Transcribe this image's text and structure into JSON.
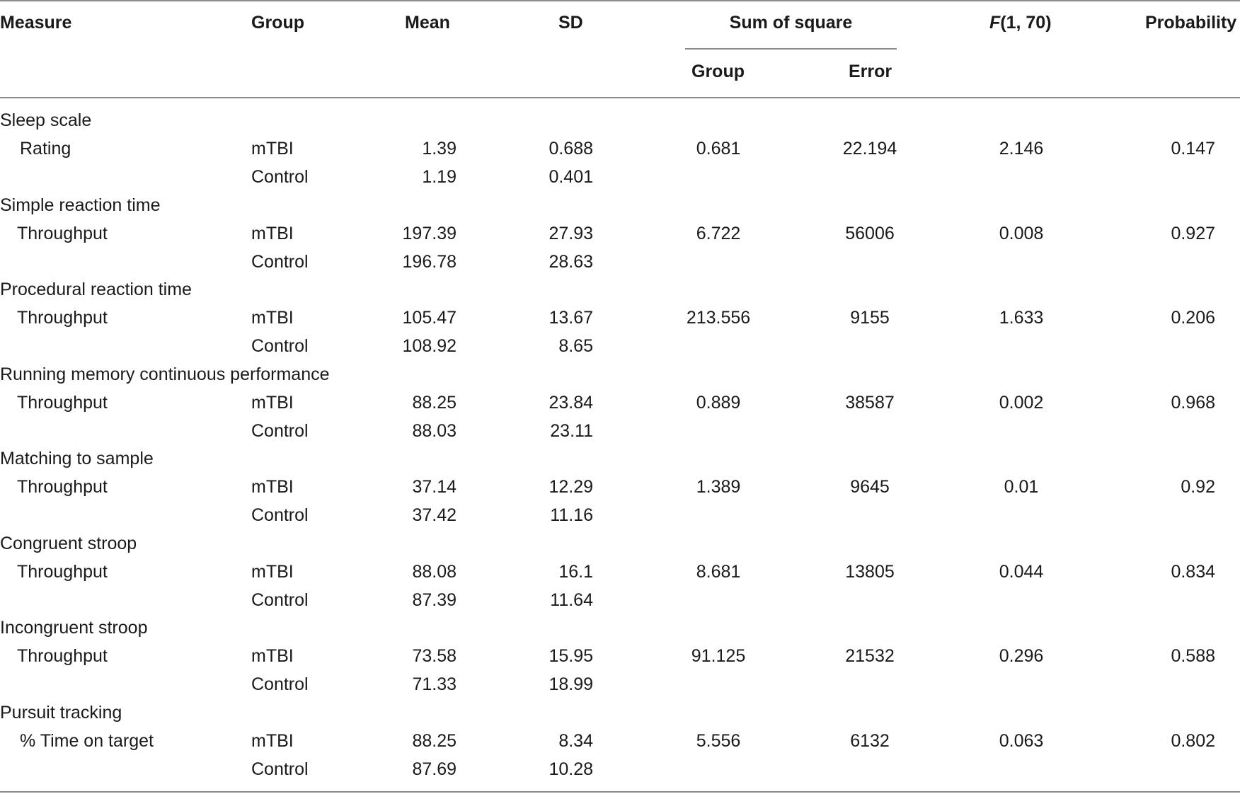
{
  "headers": {
    "measure": "Measure",
    "group": "Group",
    "mean": "Mean",
    "sd": "SD",
    "sum_of_square": "Sum of square",
    "ss_group": "Group",
    "ss_error": "Error",
    "f_italic": "F",
    "f_rest": "(1, 70)",
    "probability": "Probability"
  },
  "sections": [
    {
      "title": "Sleep scale",
      "metric": "Rating",
      "rows": [
        {
          "group": "mTBI",
          "mean": "1.39",
          "sd": "0.688",
          "ss_group": "0.681",
          "ss_error": "22.194",
          "f": "2.146",
          "p": "0.147"
        },
        {
          "group": "Control",
          "mean": "1.19",
          "sd": "0.401",
          "ss_group": "",
          "ss_error": "",
          "f": "",
          "p": ""
        }
      ]
    },
    {
      "title": "Simple reaction time",
      "metric": "Throughput",
      "rows": [
        {
          "group": "mTBI",
          "mean": "197.39",
          "sd": "27.93",
          "ss_group": "6.722",
          "ss_error": "56006",
          "f": "0.008",
          "p": "0.927"
        },
        {
          "group": "Control",
          "mean": "196.78",
          "sd": "28.63",
          "ss_group": "",
          "ss_error": "",
          "f": "",
          "p": ""
        }
      ]
    },
    {
      "title": "Procedural reaction time",
      "metric": "Throughput",
      "rows": [
        {
          "group": "mTBI",
          "mean": "105.47",
          "sd": "13.67",
          "ss_group": "213.556",
          "ss_error": "9155",
          "f": "1.633",
          "p": "0.206"
        },
        {
          "group": "Control",
          "mean": "108.92",
          "sd": "8.65",
          "ss_group": "",
          "ss_error": "",
          "f": "",
          "p": ""
        }
      ]
    },
    {
      "title": "Running memory continuous performance",
      "metric": "Throughput",
      "rows": [
        {
          "group": "mTBI",
          "mean": "88.25",
          "sd": "23.84",
          "ss_group": "0.889",
          "ss_error": "38587",
          "f": "0.002",
          "p": "0.968"
        },
        {
          "group": "Control",
          "mean": "88.03",
          "sd": "23.11",
          "ss_group": "",
          "ss_error": "",
          "f": "",
          "p": ""
        }
      ]
    },
    {
      "title": "Matching to sample",
      "metric": "Throughput",
      "rows": [
        {
          "group": "mTBI",
          "mean": "37.14",
          "sd": "12.29",
          "ss_group": "1.389",
          "ss_error": "9645",
          "f": "0.01",
          "p": "0.92"
        },
        {
          "group": "Control",
          "mean": "37.42",
          "sd": "11.16",
          "ss_group": "",
          "ss_error": "",
          "f": "",
          "p": ""
        }
      ]
    },
    {
      "title": "Congruent stroop",
      "metric": "Throughput",
      "rows": [
        {
          "group": "mTBI",
          "mean": "88.08",
          "sd": "16.1",
          "ss_group": "8.681",
          "ss_error": "13805",
          "f": "0.044",
          "p": "0.834"
        },
        {
          "group": "Control",
          "mean": "87.39",
          "sd": "11.64",
          "ss_group": "",
          "ss_error": "",
          "f": "",
          "p": ""
        }
      ]
    },
    {
      "title": "Incongruent stroop",
      "metric": "Throughput",
      "rows": [
        {
          "group": "mTBI",
          "mean": "73.58",
          "sd": "15.95",
          "ss_group": "91.125",
          "ss_error": "21532",
          "f": "0.296",
          "p": "0.588"
        },
        {
          "group": "Control",
          "mean": "71.33",
          "sd": "18.99",
          "ss_group": "",
          "ss_error": "",
          "f": "",
          "p": ""
        }
      ]
    },
    {
      "title": "Pursuit tracking",
      "metric": "% Time on target",
      "rows": [
        {
          "group": "mTBI",
          "mean": "88.25",
          "sd": "8.34",
          "ss_group": "5.556",
          "ss_error": "6132",
          "f": "0.063",
          "p": "0.802"
        },
        {
          "group": "Control",
          "mean": "87.69",
          "sd": "10.28",
          "ss_group": "",
          "ss_error": "",
          "f": "",
          "p": ""
        }
      ]
    }
  ]
}
